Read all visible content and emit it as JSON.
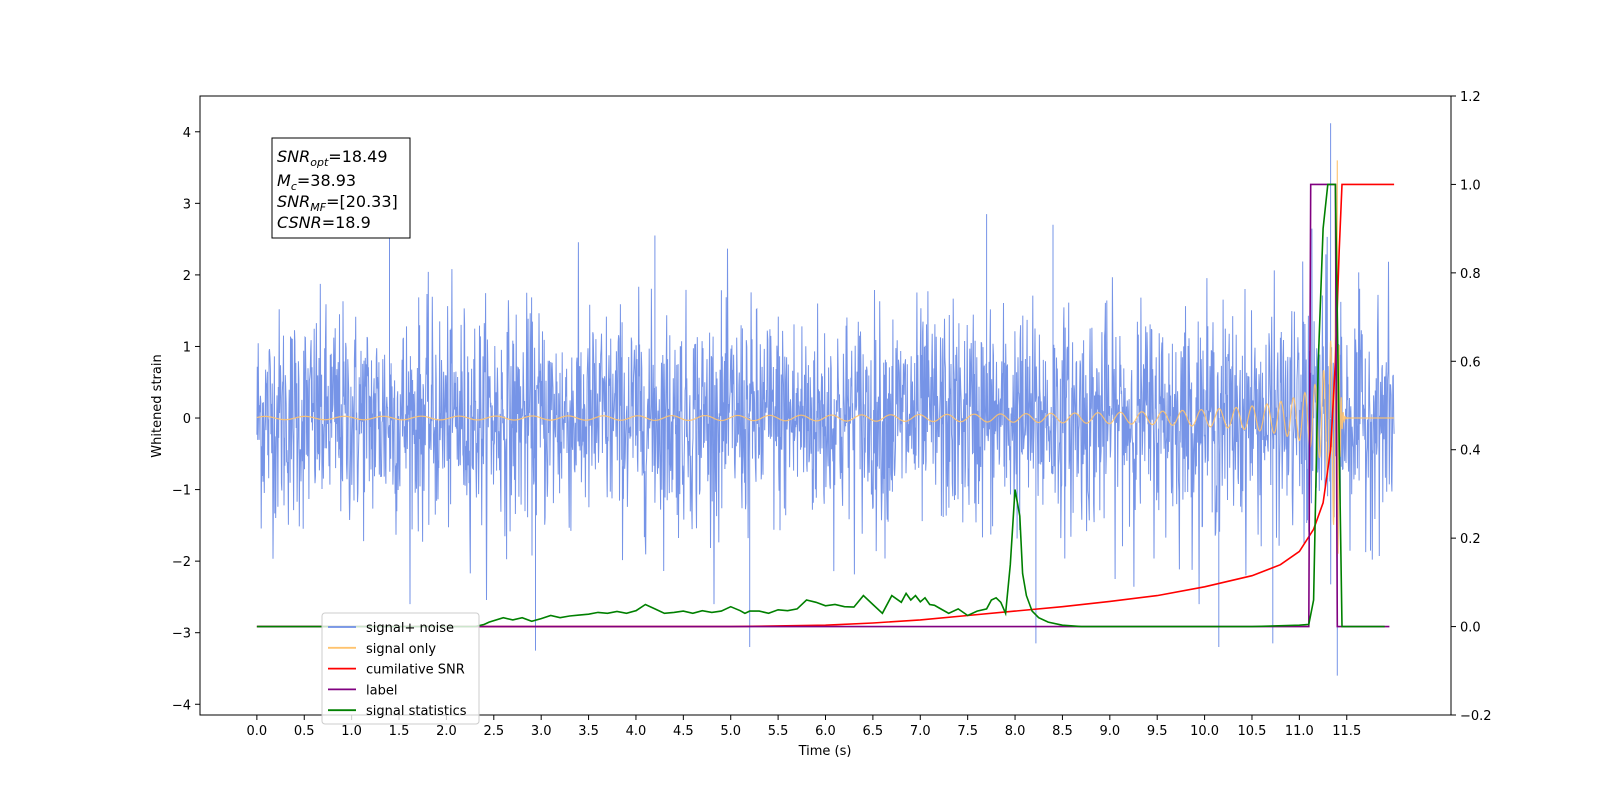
{
  "chart_data": {
    "type": "line",
    "title": "",
    "xlabel": "Time (s)",
    "ylabel": "Whitened strain",
    "xlim": [
      -0.6,
      12.6
    ],
    "ylim": [
      -4.15,
      4.5
    ],
    "y2lim": [
      -0.2,
      1.2
    ],
    "xticks": [
      "0.0",
      "0.5",
      "1.0",
      "1.5",
      "2.0",
      "2.5",
      "3.0",
      "3.5",
      "4.0",
      "4.5",
      "5.0",
      "5.5",
      "6.0",
      "6.5",
      "7.0",
      "7.5",
      "8.0",
      "8.5",
      "9.0",
      "9.5",
      "10.0",
      "10.5",
      "11.0",
      "11.5"
    ],
    "yticks": [
      "4",
      "3",
      "2",
      "1",
      "0",
      "−1",
      "−2",
      "−3",
      "−4"
    ],
    "y2ticks": [
      "1.2",
      "1.0",
      "0.8",
      "0.6",
      "0.4",
      "0.2",
      "0.0",
      "−0.2"
    ],
    "info_box": {
      "snr_opt": {
        "sym": "SNR",
        "sub": "opt",
        "val": "=18.49"
      },
      "mc": {
        "sym": "M",
        "sub": "c",
        "val": "=38.93"
      },
      "snr_mf": {
        "sym": "SNR",
        "sub": "MF",
        "val": "=[20.33]"
      },
      "csnr": {
        "sym": "CSNR",
        "sub": "",
        "val": "=18.9"
      }
    },
    "legend": {
      "placement": "lower-left",
      "entries": [
        {
          "label": "signal+ noise",
          "color": "#6f8ee6"
        },
        {
          "label": "signal only",
          "color": "#ffc36e"
        },
        {
          "label": "cumilative SNR",
          "color": "#ff0000"
        },
        {
          "label": "label",
          "color": "#800080"
        },
        {
          "label": "signal statistics",
          "color": "#008000"
        }
      ]
    },
    "series": [
      {
        "name": "signal+ noise",
        "axis": "left",
        "color": "#6f8ee6",
        "noise_amplitude": 0.75,
        "spikes_low": [
          [
            2.94,
            -3.25
          ],
          [
            5.2,
            -3.2
          ],
          [
            8.22,
            -3.15
          ],
          [
            10.15,
            -3.2
          ],
          [
            10.72,
            -3.15
          ],
          [
            11.4,
            -3.6
          ]
        ],
        "spikes_high": [
          [
            1.4,
            2.6
          ],
          [
            4.2,
            2.55
          ],
          [
            7.7,
            2.85
          ],
          [
            8.4,
            2.7
          ],
          [
            11.33,
            4.12
          ]
        ]
      },
      {
        "name": "signal only",
        "axis": "left",
        "color": "#ffc36e",
        "chirp_peak_time": 11.4,
        "peak_amplitude": 3.6
      },
      {
        "name": "cumilative SNR",
        "axis": "right",
        "color": "#ff0000",
        "x": [
          0,
          2.5,
          5.0,
          6.0,
          6.5,
          7.0,
          7.5,
          8.0,
          8.5,
          9.0,
          9.5,
          10.0,
          10.5,
          10.8,
          11.0,
          11.15,
          11.25,
          11.33,
          11.38,
          11.42,
          11.45,
          11.5,
          12.0
        ],
        "y": [
          0,
          0,
          0,
          0.003,
          0.008,
          0.015,
          0.025,
          0.035,
          0.045,
          0.057,
          0.07,
          0.09,
          0.115,
          0.14,
          0.17,
          0.22,
          0.28,
          0.4,
          0.6,
          0.85,
          1.0,
          1.0,
          1.0
        ]
      },
      {
        "name": "label",
        "axis": "right",
        "color": "#800080",
        "x": [
          0,
          11.1,
          11.12,
          11.38,
          11.4,
          11.95
        ],
        "y": [
          0,
          0,
          1,
          1,
          0,
          0
        ]
      },
      {
        "name": "signal statistics",
        "axis": "right",
        "color": "#008000",
        "x": [
          0,
          2.3,
          2.4,
          2.45,
          2.6,
          2.7,
          2.8,
          2.9,
          3.0,
          3.1,
          3.2,
          3.3,
          3.4,
          3.5,
          3.6,
          3.7,
          3.8,
          3.9,
          4.0,
          4.1,
          4.2,
          4.3,
          4.4,
          4.5,
          4.6,
          4.7,
          4.8,
          4.9,
          5.0,
          5.1,
          5.15,
          5.2,
          5.3,
          5.4,
          5.5,
          5.6,
          5.7,
          5.8,
          5.9,
          6.0,
          6.1,
          6.2,
          6.3,
          6.4,
          6.5,
          6.6,
          6.7,
          6.8,
          6.85,
          6.9,
          6.95,
          7.0,
          7.05,
          7.1,
          7.15,
          7.2,
          7.3,
          7.4,
          7.5,
          7.6,
          7.7,
          7.75,
          7.8,
          7.85,
          7.9,
          7.95,
          8.0,
          8.05,
          8.08,
          8.12,
          8.18,
          8.25,
          8.35,
          8.5,
          8.7,
          9.0,
          10.5,
          11.0,
          11.1,
          11.15,
          11.2,
          11.25,
          11.3,
          11.35,
          11.38,
          11.4,
          11.45,
          11.9
        ],
        "y": [
          0,
          0,
          0.005,
          0.01,
          0.02,
          0.015,
          0.02,
          0.012,
          0.018,
          0.025,
          0.02,
          0.024,
          0.026,
          0.028,
          0.032,
          0.03,
          0.034,
          0.03,
          0.036,
          0.05,
          0.04,
          0.03,
          0.032,
          0.035,
          0.03,
          0.036,
          0.032,
          0.035,
          0.045,
          0.036,
          0.03,
          0.035,
          0.035,
          0.03,
          0.038,
          0.036,
          0.04,
          0.06,
          0.055,
          0.047,
          0.05,
          0.045,
          0.044,
          0.07,
          0.05,
          0.03,
          0.07,
          0.055,
          0.075,
          0.06,
          0.07,
          0.056,
          0.065,
          0.05,
          0.048,
          0.042,
          0.03,
          0.04,
          0.025,
          0.035,
          0.04,
          0.06,
          0.065,
          0.055,
          0.03,
          0.14,
          0.31,
          0.25,
          0.12,
          0.07,
          0.035,
          0.02,
          0.01,
          0.003,
          0,
          0,
          0,
          0.003,
          0.005,
          0.06,
          0.6,
          0.9,
          1.0,
          1.0,
          1.0,
          0.7,
          0,
          0
        ]
      }
    ]
  }
}
